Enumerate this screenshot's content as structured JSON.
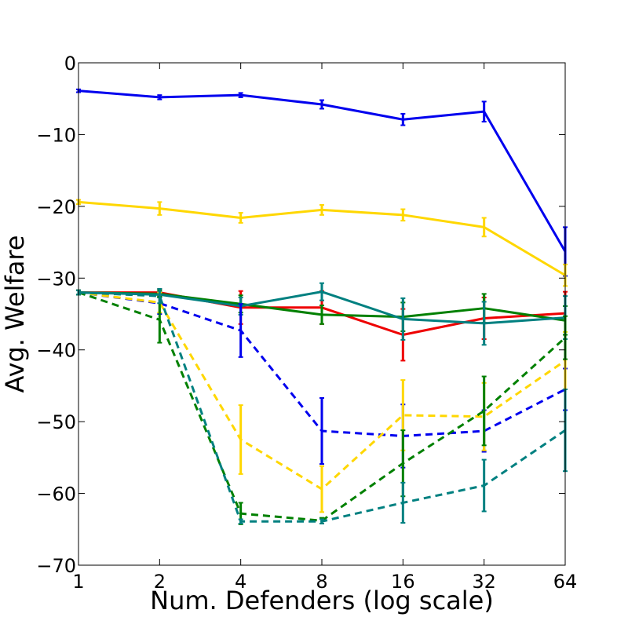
{
  "chart_data": {
    "type": "line",
    "title": "",
    "xlabel": "Num. Defenders (log scale)",
    "ylabel": "Avg. Welfare",
    "x_scale": "log2",
    "x": [
      1,
      2,
      4,
      8,
      16,
      32,
      64
    ],
    "x_tick_labels": [
      "1",
      "2",
      "4",
      "8",
      "16",
      "32",
      "64"
    ],
    "ylim": [
      -70,
      0
    ],
    "y_ticks": [
      0,
      -10,
      -20,
      -30,
      -40,
      -50,
      -60,
      -70
    ],
    "y_tick_labels": [
      "0",
      "−10",
      "−20",
      "−30",
      "−40",
      "−50",
      "−60",
      "−70"
    ],
    "grid": false,
    "legend": "none",
    "series": [
      {
        "name": "blue-solid",
        "color": "#0000ee",
        "style": "solid",
        "values": [
          -3.9,
          -4.8,
          -4.5,
          -5.8,
          -7.9,
          -6.8,
          -26.3
        ],
        "errors": [
          0.2,
          0.3,
          0.3,
          0.6,
          0.8,
          1.4,
          3.4
        ]
      },
      {
        "name": "gold-solid",
        "color": "#ffd700",
        "style": "solid",
        "values": [
          -19.4,
          -20.3,
          -21.6,
          -20.5,
          -21.2,
          -22.9,
          -29.6
        ],
        "errors": [
          0.3,
          0.9,
          0.7,
          0.7,
          0.8,
          1.3,
          1.5
        ]
      },
      {
        "name": "red-solid",
        "color": "#ee0000",
        "style": "solid",
        "values": [
          -32.0,
          -32.0,
          -34.1,
          -34.1,
          -37.9,
          -35.6,
          -34.9
        ],
        "errors": [
          0.3,
          0.5,
          2.3,
          2.3,
          3.6,
          2.9,
          3.0
        ]
      },
      {
        "name": "green-solid",
        "color": "#008000",
        "style": "solid",
        "values": [
          -32.0,
          -32.2,
          -33.6,
          -35.1,
          -35.4,
          -34.2,
          -35.9
        ],
        "errors": [
          0.3,
          0.5,
          1.2,
          1.3,
          2.0,
          2.0,
          2.0
        ]
      },
      {
        "name": "teal-solid",
        "color": "#008080",
        "style": "solid",
        "values": [
          -32.0,
          -32.3,
          -33.9,
          -31.9,
          -35.7,
          -36.3,
          -35.5
        ],
        "errors": [
          0.3,
          0.4,
          1.2,
          1.2,
          2.9,
          3.0,
          3.0
        ]
      },
      {
        "name": "blue-dashed",
        "color": "#0000ee",
        "style": "dashed",
        "values": [
          -32.0,
          -33.5,
          -37.3,
          -51.3,
          -52.0,
          -51.3,
          -45.5
        ],
        "errors": [
          0.3,
          1.5,
          3.7,
          4.6,
          4.4,
          2.9,
          2.9
        ]
      },
      {
        "name": "gold-dashed",
        "color": "#ffd700",
        "style": "dashed",
        "values": [
          -32.0,
          -33.4,
          -52.5,
          -59.4,
          -49.1,
          -49.3,
          -41.5
        ],
        "errors": [
          0.3,
          1.4,
          4.8,
          3.2,
          4.9,
          4.7,
          4.0
        ]
      },
      {
        "name": "green-dashed",
        "color": "#008000",
        "style": "dashed",
        "values": [
          -32.0,
          -35.8,
          -62.8,
          -63.8,
          -55.8,
          -48.5,
          -38.3
        ],
        "errors": [
          0.3,
          3.2,
          1.5,
          0.4,
          4.6,
          4.8,
          3.0
        ]
      },
      {
        "name": "teal-dashed",
        "color": "#008080",
        "style": "dashed",
        "values": [
          -32.0,
          -32.5,
          -63.9,
          -63.9,
          -61.3,
          -58.9,
          -51.2
        ],
        "errors": [
          0.3,
          1.0,
          0.3,
          0.3,
          2.8,
          3.6,
          5.7
        ]
      }
    ]
  }
}
